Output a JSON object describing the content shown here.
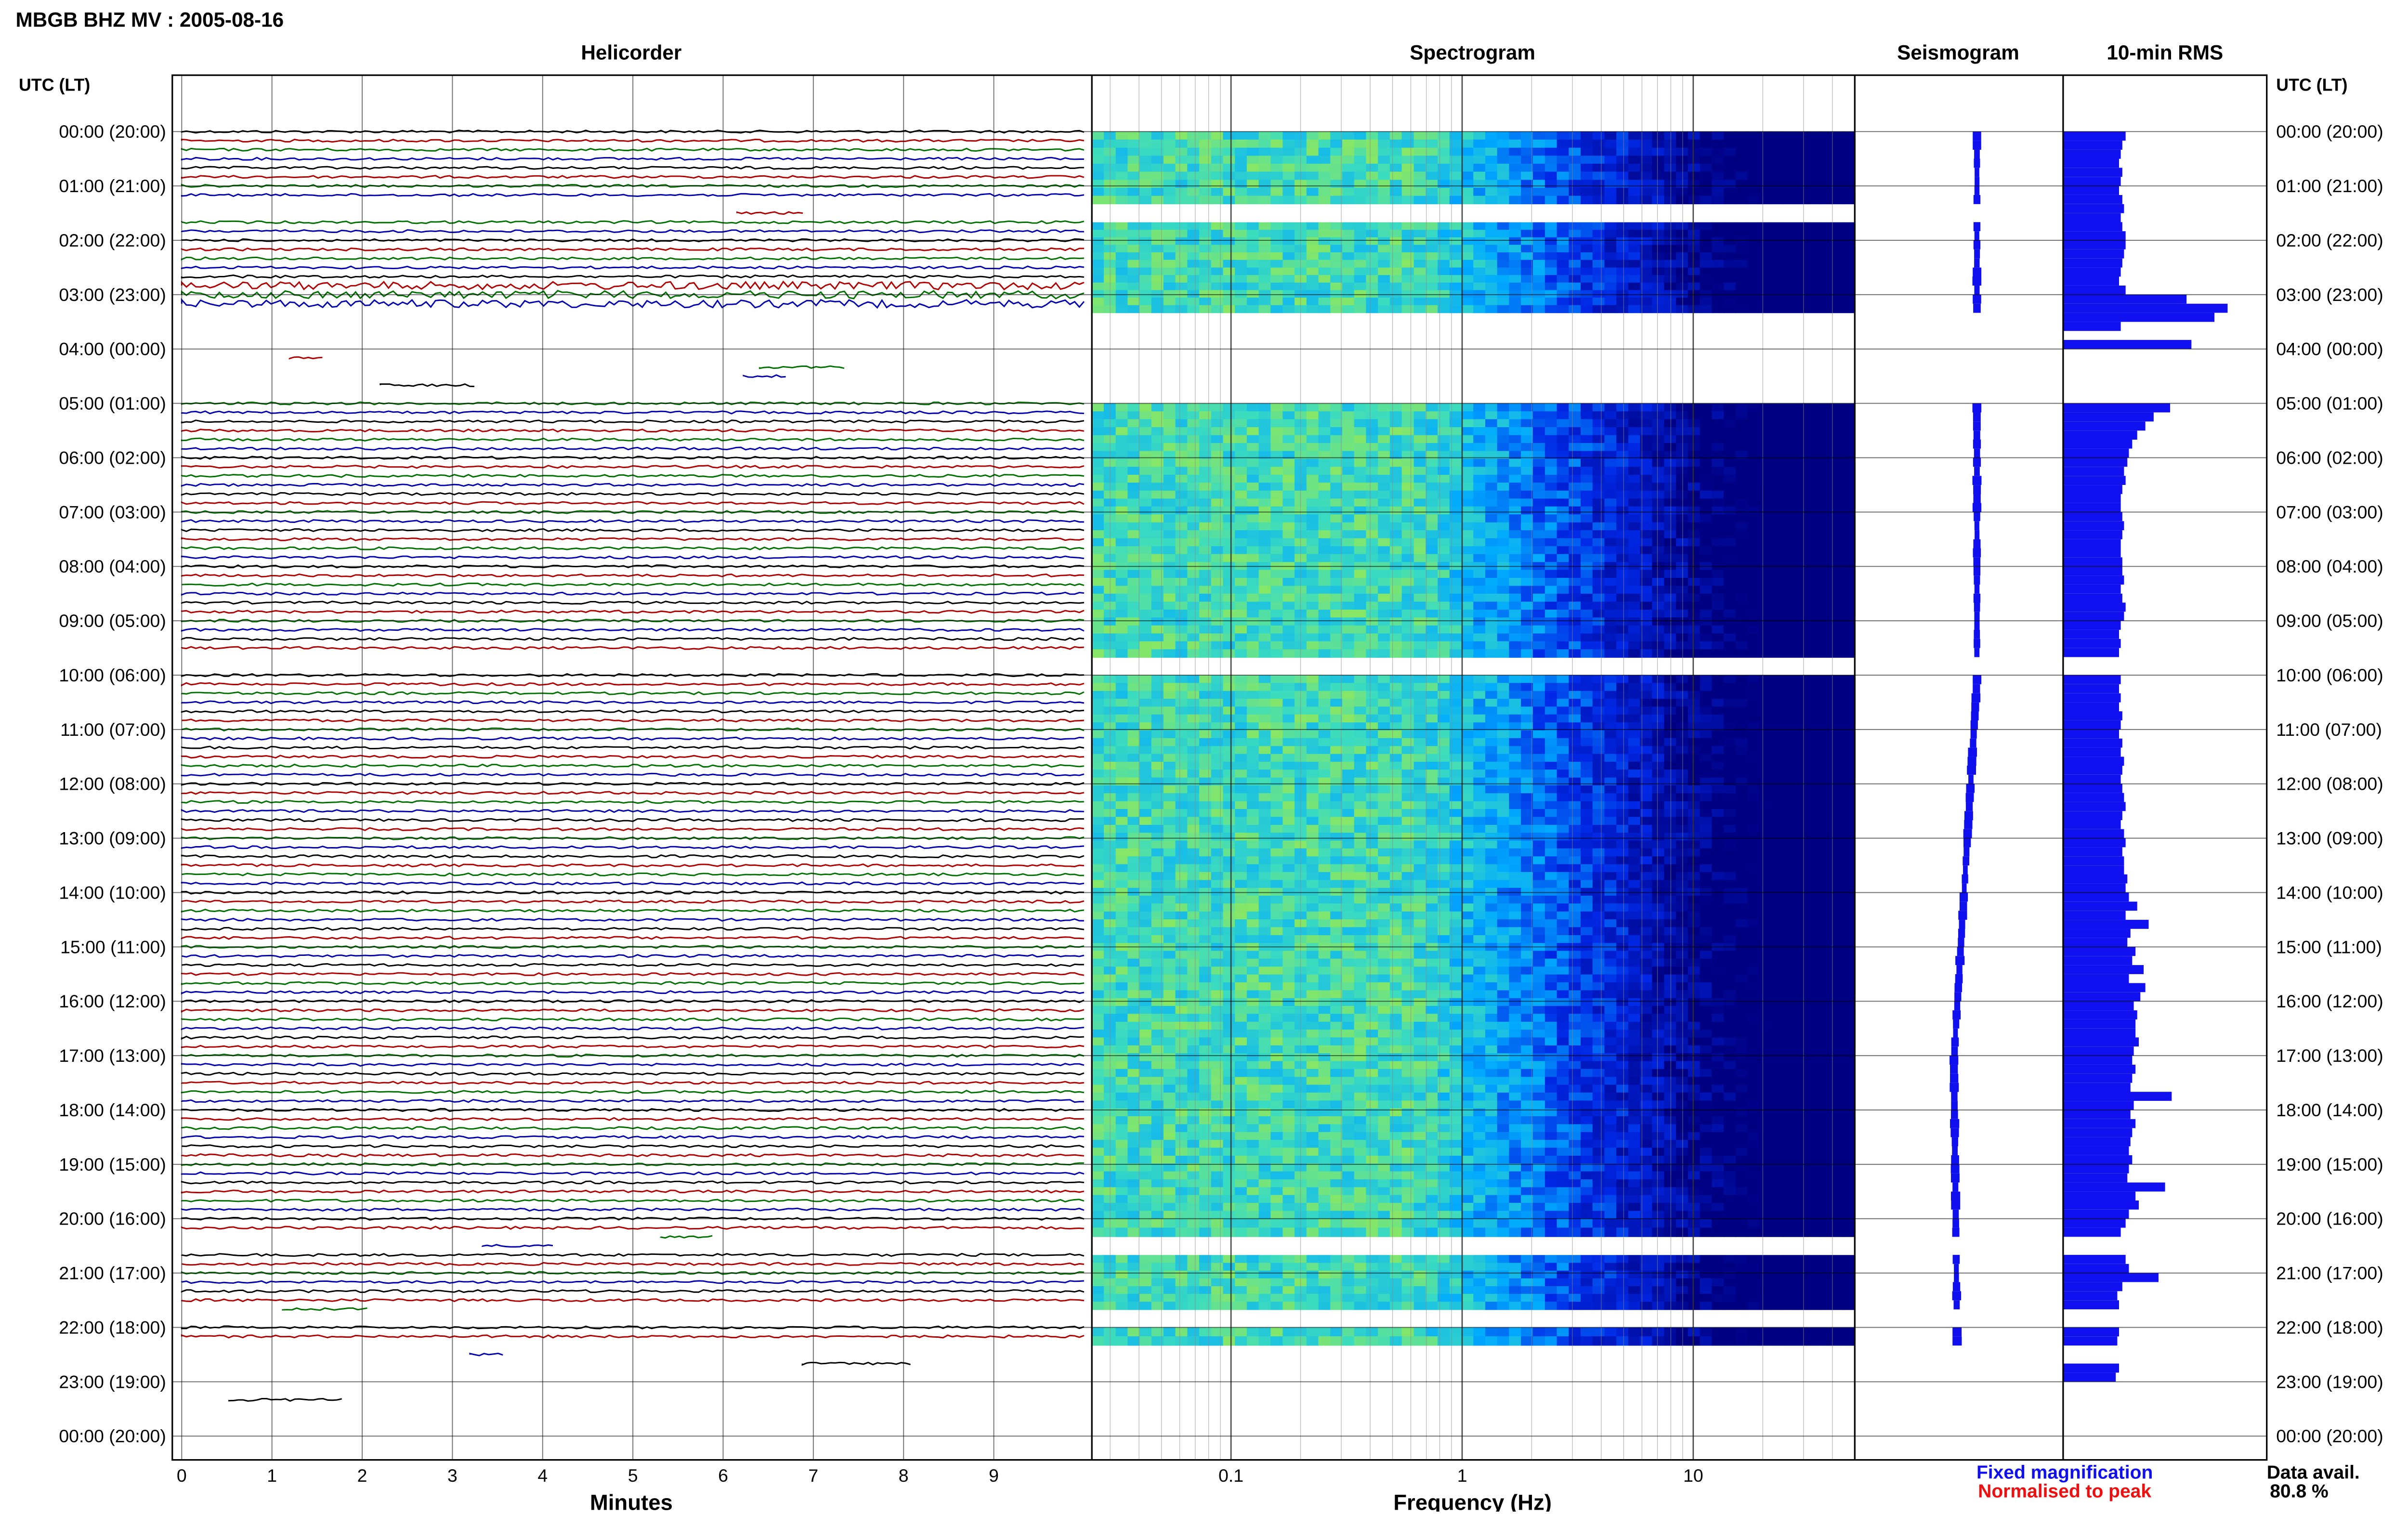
{
  "header": {
    "title": "MBGB BHZ MV : 2005-08-16",
    "panels": {
      "helicorder": "Helicorder",
      "spectrogram": "Spectrogram",
      "seismogram": "Seismogram",
      "rms": "10-min RMS"
    },
    "time_axis_title": "UTC (LT)"
  },
  "footer": {
    "minutes_label": "Minutes",
    "frequency_label": "Frequency (Hz)",
    "legend_fixed": "Fixed magnification",
    "legend_normalised": "Normalised to peak",
    "data_avail_label": "Data avail.",
    "data_avail_value": "80.8 %"
  },
  "colors": {
    "fixed_magnification": "#1010ee",
    "normalised_to_peak": "#ee1010",
    "trace_palette": [
      "#000000",
      "#b00000",
      "#007000",
      "#0000b0"
    ],
    "rms_bar": "#1010f0"
  },
  "chart_data": {
    "type": "heatmap",
    "time_labels": [
      "00:00 (20:00)",
      "01:00 (21:00)",
      "02:00 (22:00)",
      "03:00 (23:00)",
      "04:00 (00:00)",
      "05:00 (01:00)",
      "06:00 (02:00)",
      "07:00 (03:00)",
      "08:00 (04:00)",
      "09:00 (05:00)",
      "10:00 (06:00)",
      "11:00 (07:00)",
      "12:00 (08:00)",
      "13:00 (09:00)",
      "14:00 (10:00)",
      "15:00 (11:00)",
      "16:00 (12:00)",
      "17:00 (13:00)",
      "18:00 (14:00)",
      "19:00 (15:00)",
      "20:00 (16:00)",
      "21:00 (17:00)",
      "22:00 (18:00)",
      "23:00 (19:00)",
      "00:00 (20:00)"
    ],
    "minutes_ticks": [
      "0",
      "1",
      "2",
      "3",
      "4",
      "5",
      "6",
      "7",
      "8",
      "9"
    ],
    "frequency_ticks": [
      "0.1",
      "1",
      "10"
    ],
    "frequency_range_hz": [
      0.025,
      50
    ],
    "spectrogram_segments_utc_hours": [
      [
        0.0,
        1.33
      ],
      [
        1.67,
        3.33
      ],
      [
        5.0,
        9.67
      ],
      [
        10.0,
        20.0
      ],
      [
        20.0,
        20.33
      ],
      [
        20.67,
        21.67
      ],
      [
        22.0,
        22.33
      ]
    ],
    "data_availability_percent": 80.8,
    "rms_10min": [
      0.38,
      0.36,
      0.35,
      0.34,
      0.36,
      0.35,
      0.34,
      0.36,
      0.37,
      0.35,
      0.36,
      0.38,
      0.38,
      0.37,
      0.36,
      0.35,
      0.34,
      0.38,
      0.75,
      1.0,
      0.92,
      0.35,
      0.0,
      0.78,
      0.0,
      0.0,
      0.0,
      0.0,
      0.0,
      0.0,
      0.65,
      0.55,
      0.5,
      0.45,
      0.42,
      0.4,
      0.39,
      0.37,
      0.38,
      0.36,
      0.35,
      0.35,
      0.36,
      0.37,
      0.36,
      0.35,
      0.35,
      0.36,
      0.36,
      0.37,
      0.35,
      0.36,
      0.38,
      0.37,
      0.35,
      0.34,
      0.35,
      0.34,
      0.0,
      0.0,
      0.35,
      0.34,
      0.35,
      0.34,
      0.36,
      0.35,
      0.34,
      0.36,
      0.35,
      0.37,
      0.36,
      0.35,
      0.36,
      0.37,
      0.38,
      0.36,
      0.35,
      0.37,
      0.38,
      0.36,
      0.37,
      0.37,
      0.39,
      0.38,
      0.4,
      0.45,
      0.38,
      0.52,
      0.41,
      0.39,
      0.44,
      0.42,
      0.49,
      0.4,
      0.5,
      0.47,
      0.43,
      0.45,
      0.44,
      0.44,
      0.46,
      0.43,
      0.42,
      0.44,
      0.42,
      0.41,
      0.66,
      0.43,
      0.41,
      0.44,
      0.42,
      0.41,
      0.4,
      0.42,
      0.4,
      0.39,
      0.62,
      0.44,
      0.46,
      0.4,
      0.38,
      0.35,
      0.0,
      0.0,
      0.38,
      0.4,
      0.58,
      0.36,
      0.33,
      0.34,
      0.0,
      0.0,
      0.34,
      0.33,
      0.0,
      0.0,
      0.34,
      0.32,
      0.0,
      0.0,
      0.0,
      0.0,
      0.0,
      0.0
    ]
  }
}
